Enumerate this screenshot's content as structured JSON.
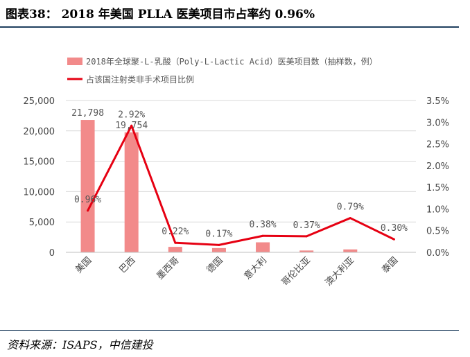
{
  "header": {
    "title": "图表38： 2018 年美国 PLLA 医美项目市占率约 0.96%"
  },
  "footer": {
    "source": "资料来源：ISAPS，中信建投"
  },
  "chart_data": {
    "type": "bar",
    "categories": [
      "美国",
      "巴西",
      "墨西哥",
      "德国",
      "意大利",
      "哥伦比亚",
      "澳大利亚",
      "泰国"
    ],
    "series": [
      {
        "name": "2018年全球聚-L-乳酸（Poly-L-Lactic Acid）医美项目数（抽样数，例）",
        "type": "bar",
        "axis": "left",
        "color": "#f28a8a",
        "values": [
          21798,
          19754,
          900,
          700,
          1650,
          300,
          480,
          60
        ],
        "labels": [
          "21,798",
          "19,754",
          "",
          "",
          "",
          "",
          "",
          ""
        ]
      },
      {
        "name": "占该国注射类非手术项目比例",
        "type": "line",
        "axis": "right",
        "color": "#e60012",
        "values": [
          0.96,
          2.92,
          0.22,
          0.17,
          0.38,
          0.37,
          0.79,
          0.3
        ],
        "labels": [
          "0.96%",
          "2.92%",
          "0.22%",
          "0.17%",
          "0.38%",
          "0.37%",
          "0.79%",
          "0.30%"
        ]
      }
    ],
    "y_left": {
      "min": 0,
      "max": 25000,
      "ticks": [
        0,
        5000,
        10000,
        15000,
        20000,
        25000
      ],
      "tick_labels": [
        "0",
        "5,000",
        "10,000",
        "15,000",
        "20,000",
        "25,000"
      ]
    },
    "y_right": {
      "min": 0,
      "max": 3.5,
      "ticks": [
        0,
        0.5,
        1.0,
        1.5,
        2.0,
        2.5,
        3.0,
        3.5
      ],
      "tick_labels": [
        "0.0%",
        "0.5%",
        "1.0%",
        "1.5%",
        "2.0%",
        "2.5%",
        "3.0%",
        "3.5%"
      ]
    },
    "grid": true,
    "legend": "top"
  }
}
